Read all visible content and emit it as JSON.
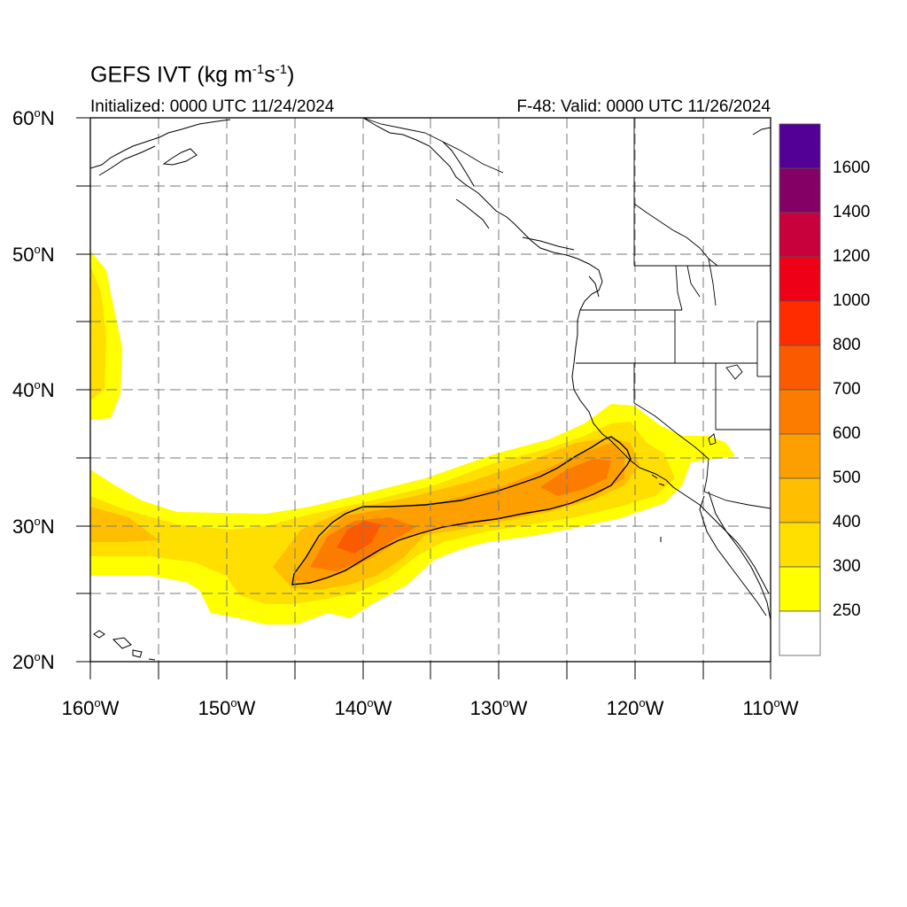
{
  "title": {
    "prefix": "GEFS IVT (kg m",
    "exp1": "-1",
    "middle": "s",
    "exp2": "-1",
    "suffix": ")"
  },
  "subtitle_left": "Initialized: 0000 UTC 11/24/2024",
  "subtitle_right": "F-48: Valid: 0000 UTC 11/26/2024",
  "map": {
    "lon_range": [
      -160,
      -110
    ],
    "lat_range": [
      20,
      60
    ],
    "lon_ticks": [
      {
        "value": -160,
        "label": "160",
        "suffix": "W"
      },
      {
        "value": -150,
        "label": "150",
        "suffix": "W"
      },
      {
        "value": -140,
        "label": "140",
        "suffix": "W"
      },
      {
        "value": -130,
        "label": "130",
        "suffix": "W"
      },
      {
        "value": -120,
        "label": "120",
        "suffix": "W"
      },
      {
        "value": -110,
        "label": "110",
        "suffix": "W"
      }
    ],
    "lat_ticks": [
      {
        "value": 60,
        "label": "60",
        "suffix": "N"
      },
      {
        "value": 50,
        "label": "50",
        "suffix": "N"
      },
      {
        "value": 40,
        "label": "40",
        "suffix": "N"
      },
      {
        "value": 30,
        "label": "30",
        "suffix": "N"
      },
      {
        "value": 20,
        "label": "20",
        "suffix": "N"
      }
    ],
    "gridlines": "dashed every 5 degrees",
    "contour_line_level": 500
  },
  "colorbar": {
    "labels": [
      "1600",
      "1400",
      "1200",
      "1000",
      "800",
      "700",
      "600",
      "500",
      "400",
      "300",
      "250"
    ],
    "colors_top_to_bottom": [
      "#520096",
      "#840064",
      "#c8003c",
      "#ee0016",
      "#ff2c00",
      "#fc5a00",
      "#fc7c00",
      "#fe9f00",
      "#ffbe00",
      "#ffdf00",
      "#ffff00",
      "#ffffff"
    ]
  }
}
